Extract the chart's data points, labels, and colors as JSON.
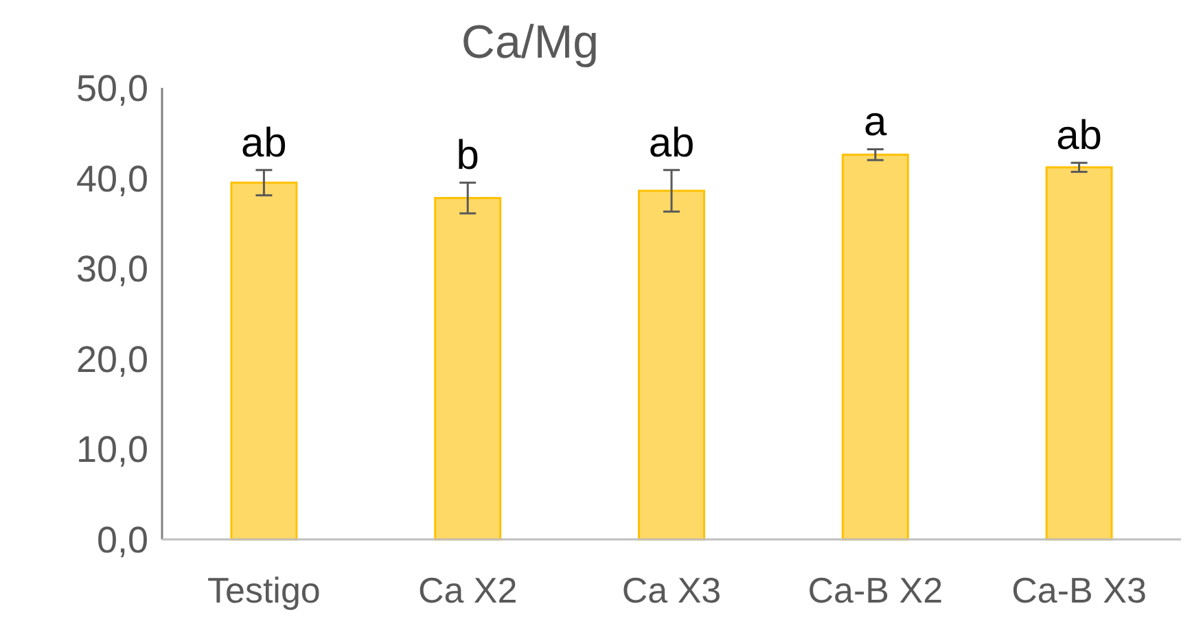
{
  "chart_data": {
    "type": "bar",
    "title": "Ca/Mg",
    "categories": [
      "Testigo",
      "Ca X2",
      "Ca X3",
      "Ca-B X2",
      "Ca-B X3"
    ],
    "values": [
      39.5,
      37.8,
      38.6,
      42.6,
      41.2
    ],
    "errors": [
      1.4,
      1.7,
      2.3,
      0.6,
      0.5
    ],
    "color": "#ffd966",
    "ylim": [
      0,
      50
    ],
    "yticks": [
      {
        "value": 0,
        "label": "0,0"
      },
      {
        "value": 10,
        "label": "10,0"
      },
      {
        "value": 20,
        "label": "20,0"
      },
      {
        "value": 30,
        "label": "30,0"
      },
      {
        "value": 40,
        "label": "40,0"
      },
      {
        "value": 50,
        "label": "50,0"
      }
    ],
    "grid": false,
    "annotations": [
      "ab",
      "b",
      "ab",
      "a",
      "ab"
    ]
  }
}
